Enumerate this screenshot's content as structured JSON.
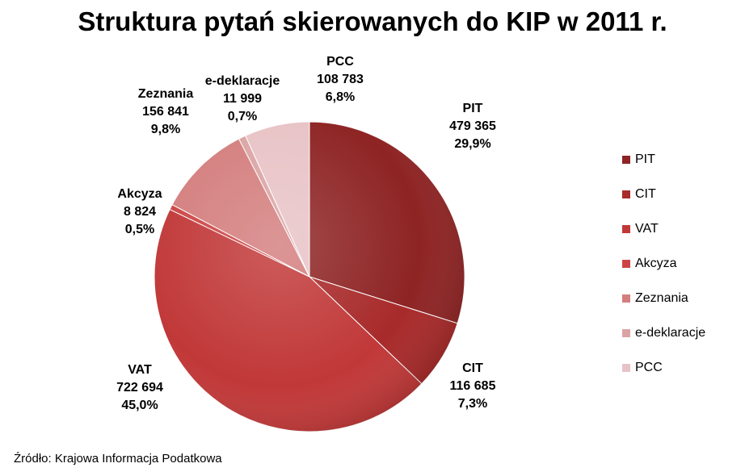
{
  "title": "Struktura pytań skierowanych do KIP w 2011 r.",
  "source": "Źródło: Krajowa Informacja Podatkowa",
  "chart_data": {
    "type": "pie",
    "title": "Struktura pytań skierowanych do KIP w 2011 r.",
    "legend_position": "right",
    "slices": [
      {
        "name": "PIT",
        "value": 479365,
        "value_label": "479 365",
        "percent": 29.9,
        "percent_label": "29,9%",
        "color": "#8e2424"
      },
      {
        "name": "CIT",
        "value": 116685,
        "value_label": "116 685",
        "percent": 7.3,
        "percent_label": "7,3%",
        "color": "#a82a2a"
      },
      {
        "name": "VAT",
        "value": 722694,
        "value_label": "722 694",
        "percent": 45.0,
        "percent_label": "45,0%",
        "color": "#c13838"
      },
      {
        "name": "Akcyza",
        "value": 8824,
        "value_label": "8 824",
        "percent": 0.5,
        "percent_label": "0,5%",
        "color": "#cc4545"
      },
      {
        "name": "Zeznania",
        "value": 156841,
        "value_label": "156 841",
        "percent": 9.8,
        "percent_label": "9,8%",
        "color": "#d47e7e"
      },
      {
        "name": "e-deklaracje",
        "value": 11999,
        "value_label": "11 999",
        "percent": 0.7,
        "percent_label": "0,7%",
        "color": "#dba4a4"
      },
      {
        "name": "PCC",
        "value": 108783,
        "value_label": "108 783",
        "percent": 6.8,
        "percent_label": "6,8%",
        "color": "#e8c3c6"
      }
    ]
  }
}
